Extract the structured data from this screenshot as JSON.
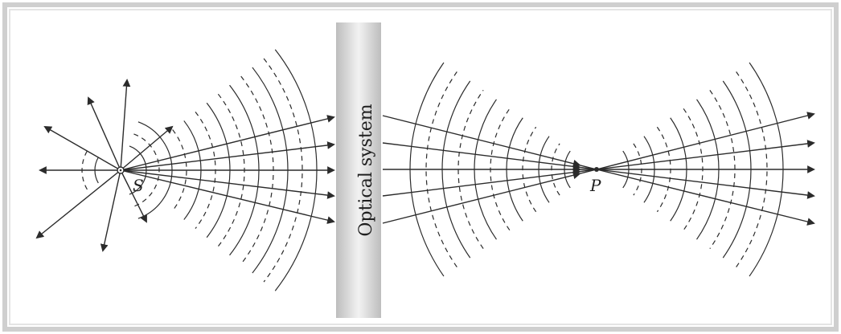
{
  "labels": {
    "source": "S",
    "focus": "P",
    "optics": "Optical system"
  },
  "colors": {
    "ink": "#2b2b2b",
    "page_frame": "#c9c9c9",
    "gray_edge": "#bdbdbd",
    "gray_mid": "#f2f2f2"
  }
}
